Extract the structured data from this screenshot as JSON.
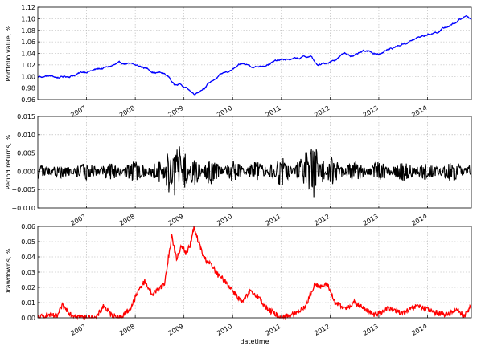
{
  "chart_data": [
    {
      "type": "line",
      "ylabel": "Portfolio value, %",
      "xlabel": "",
      "x_range": [
        2006.0,
        2014.9
      ],
      "ylim": [
        0.96,
        1.12
      ],
      "yticks": [
        "0.96",
        "0.98",
        "1.00",
        "1.02",
        "1.04",
        "1.06",
        "1.08",
        "1.10",
        "1.12"
      ],
      "xticks": [
        "2007",
        "2008",
        "2009",
        "2010",
        "2011",
        "2012",
        "2013",
        "2014"
      ],
      "grid": true,
      "color": "#0000ff",
      "series": [
        {
          "x": [
            2006.0,
            2006.2,
            2006.4,
            2006.6,
            2006.8,
            2007.0,
            2007.2,
            2007.4,
            2007.6,
            2007.8,
            2008.0,
            2008.2,
            2008.4,
            2008.5,
            2008.6,
            2008.7,
            2008.8,
            2008.9,
            2009.0,
            2009.1,
            2009.2,
            2009.3,
            2009.5,
            2009.7,
            2010.0,
            2010.2,
            2010.5,
            2010.8,
            2011.0,
            2011.3,
            2011.6,
            2011.75,
            2011.9,
            2012.1,
            2012.3,
            2012.5,
            2012.7,
            2013.0,
            2013.3,
            2013.6,
            2013.9,
            2014.2,
            2014.5,
            2014.7,
            2014.8,
            2014.9
          ],
          "values": [
            0.999,
            1.001,
            0.998,
            1.0,
            1.004,
            1.009,
            1.012,
            1.015,
            1.02,
            1.022,
            1.018,
            1.015,
            1.008,
            1.007,
            1.004,
            0.998,
            0.985,
            0.99,
            0.982,
            0.978,
            0.97,
            0.975,
            0.988,
            1.0,
            1.012,
            1.02,
            1.017,
            1.025,
            1.028,
            1.03,
            1.035,
            1.018,
            1.022,
            1.03,
            1.04,
            1.036,
            1.042,
            1.04,
            1.05,
            1.06,
            1.07,
            1.078,
            1.09,
            1.1,
            1.106,
            1.1
          ]
        }
      ]
    },
    {
      "type": "line",
      "ylabel": "Period returns, %",
      "xlabel": "",
      "x_range": [
        2006.0,
        2014.9
      ],
      "ylim": [
        -0.01,
        0.015
      ],
      "yticks": [
        "−0.010",
        "−0.005",
        "0.000",
        "0.005",
        "0.010",
        "0.015"
      ],
      "xticks": [
        "2007",
        "2008",
        "2009",
        "2010",
        "2011",
        "2012",
        "2013",
        "2014"
      ],
      "grid": true,
      "color": "#000000",
      "series": [
        {
          "x": [
            2006.0,
            2006.5,
            2007.0,
            2007.5,
            2008.0,
            2008.5,
            2008.7,
            2008.75,
            2008.8,
            2008.85,
            2008.9,
            2009.0,
            2009.2,
            2009.5,
            2010.0,
            2010.5,
            2011.0,
            2011.5,
            2011.7,
            2011.8,
            2012.0,
            2012.5,
            2013.0,
            2013.5,
            2014.0,
            2014.5,
            2014.9
          ],
          "values": [
            0.001,
            -0.001,
            0.0015,
            -0.0015,
            0.002,
            -0.002,
            0.006,
            -0.008,
            0.0115,
            -0.009,
            0.007,
            -0.005,
            0.004,
            -0.003,
            0.002,
            -0.002,
            0.003,
            -0.004,
            -0.007,
            0.004,
            -0.003,
            0.002,
            -0.002,
            0.002,
            -0.002,
            0.002,
            -0.001
          ]
        }
      ]
    },
    {
      "type": "line",
      "ylabel": "Drawdowns, %",
      "xlabel": "datetime",
      "x_range": [
        2006.0,
        2014.9
      ],
      "ylim": [
        0.0,
        0.06
      ],
      "yticks": [
        "0.00",
        "0.01",
        "0.02",
        "0.03",
        "0.04",
        "0.05",
        "0.06"
      ],
      "xticks": [
        "2007",
        "2008",
        "2009",
        "2010",
        "2011",
        "2012",
        "2013",
        "2014"
      ],
      "grid": true,
      "color": "#ff0000",
      "series": [
        {
          "x": [
            2006.0,
            2006.2,
            2006.4,
            2006.5,
            2006.7,
            2007.0,
            2007.2,
            2007.35,
            2007.5,
            2007.7,
            2007.9,
            2008.1,
            2008.2,
            2008.35,
            2008.5,
            2008.6,
            2008.75,
            2008.85,
            2008.95,
            2009.05,
            2009.15,
            2009.2,
            2009.3,
            2009.4,
            2009.55,
            2009.7,
            2009.85,
            2010.0,
            2010.2,
            2010.35,
            2010.5,
            2010.7,
            2010.9,
            2011.0,
            2011.3,
            2011.5,
            2011.7,
            2011.8,
            2011.95,
            2012.1,
            2012.3,
            2012.5,
            2012.7,
            2012.9,
            2013.2,
            2013.5,
            2013.8,
            2014.1,
            2014.4,
            2014.6,
            2014.75,
            2014.9
          ],
          "values": [
            0.0,
            0.002,
            0.001,
            0.008,
            0.002,
            0.0,
            0.0,
            0.008,
            0.002,
            0.0,
            0.006,
            0.02,
            0.024,
            0.015,
            0.02,
            0.022,
            0.054,
            0.038,
            0.048,
            0.042,
            0.05,
            0.059,
            0.05,
            0.04,
            0.035,
            0.028,
            0.024,
            0.018,
            0.01,
            0.017,
            0.015,
            0.006,
            0.002,
            0.0,
            0.003,
            0.008,
            0.023,
            0.02,
            0.022,
            0.01,
            0.006,
            0.01,
            0.006,
            0.002,
            0.006,
            0.003,
            0.008,
            0.004,
            0.002,
            0.006,
            0.001,
            0.008
          ]
        }
      ]
    }
  ]
}
